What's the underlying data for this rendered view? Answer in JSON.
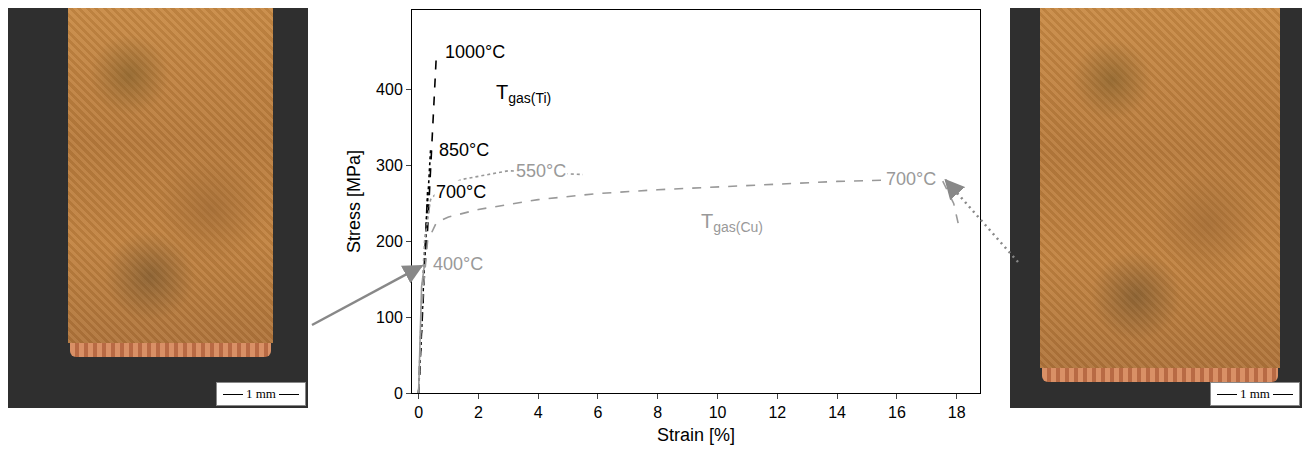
{
  "chart_data": {
    "type": "line",
    "x_label": "Strain [%]",
    "y_label": "Stress [MPa]",
    "xlim": [
      -0.22,
      18.78
    ],
    "ylim": [
      0,
      505
    ],
    "xticks": [
      0,
      2,
      4,
      6,
      8,
      10,
      12,
      14,
      16,
      18
    ],
    "yticks": [
      0,
      100,
      200,
      300,
      400
    ],
    "grid": false,
    "series": [
      {
        "name": "1000°C",
        "color": "#000000",
        "line_style": "dash",
        "x": [
          0,
          0.1,
          0.2,
          0.3,
          0.4,
          0.5,
          0.6
        ],
        "values": [
          0,
          90,
          160,
          215,
          290,
          380,
          450
        ]
      },
      {
        "name": "850°C",
        "color": "#000000",
        "line_style": "dot",
        "x": [
          0,
          0.1,
          0.2,
          0.3,
          0.4
        ],
        "values": [
          0,
          95,
          175,
          250,
          320
        ]
      },
      {
        "name": "700°C",
        "color": "#000000",
        "line_style": "dashdot",
        "x": [
          0,
          0.1,
          0.2,
          0.3
        ],
        "values": [
          0,
          95,
          180,
          265
        ]
      },
      {
        "name": "400°C",
        "color": "#999999",
        "line_style": "solid",
        "x": [
          0,
          0.05,
          0.1,
          0.2
        ],
        "values": [
          0,
          80,
          140,
          170
        ]
      },
      {
        "name": "550°C",
        "color": "#999999",
        "line_style": "dot",
        "x": [
          0,
          0.1,
          0.2,
          0.4,
          0.8,
          1.5,
          3,
          4.5,
          5.5
        ],
        "values": [
          0,
          120,
          200,
          255,
          272,
          282,
          293,
          290,
          288
        ]
      },
      {
        "name": "700°C",
        "color": "#999999",
        "line_style": "dash",
        "x": [
          0,
          0.1,
          0.3,
          0.6,
          1,
          2,
          4,
          6,
          8,
          10,
          12,
          14,
          16,
          17.5,
          17.9,
          18.1
        ],
        "values": [
          0,
          110,
          200,
          225,
          232,
          242,
          255,
          263,
          268,
          272,
          276,
          279,
          281,
          282,
          250,
          215
        ]
      }
    ],
    "annotations": [
      {
        "text": "T",
        "subscript": "gas(Ti)",
        "x": 3.5,
        "y": 395,
        "color": "#000000"
      },
      {
        "text": "T",
        "subscript": "gas(Cu)",
        "x": 10.5,
        "y": 225,
        "color": "#999999"
      }
    ]
  },
  "photos": [
    {
      "scale_bar": "1 mm"
    },
    {
      "scale_bar": "1 mm"
    }
  ]
}
